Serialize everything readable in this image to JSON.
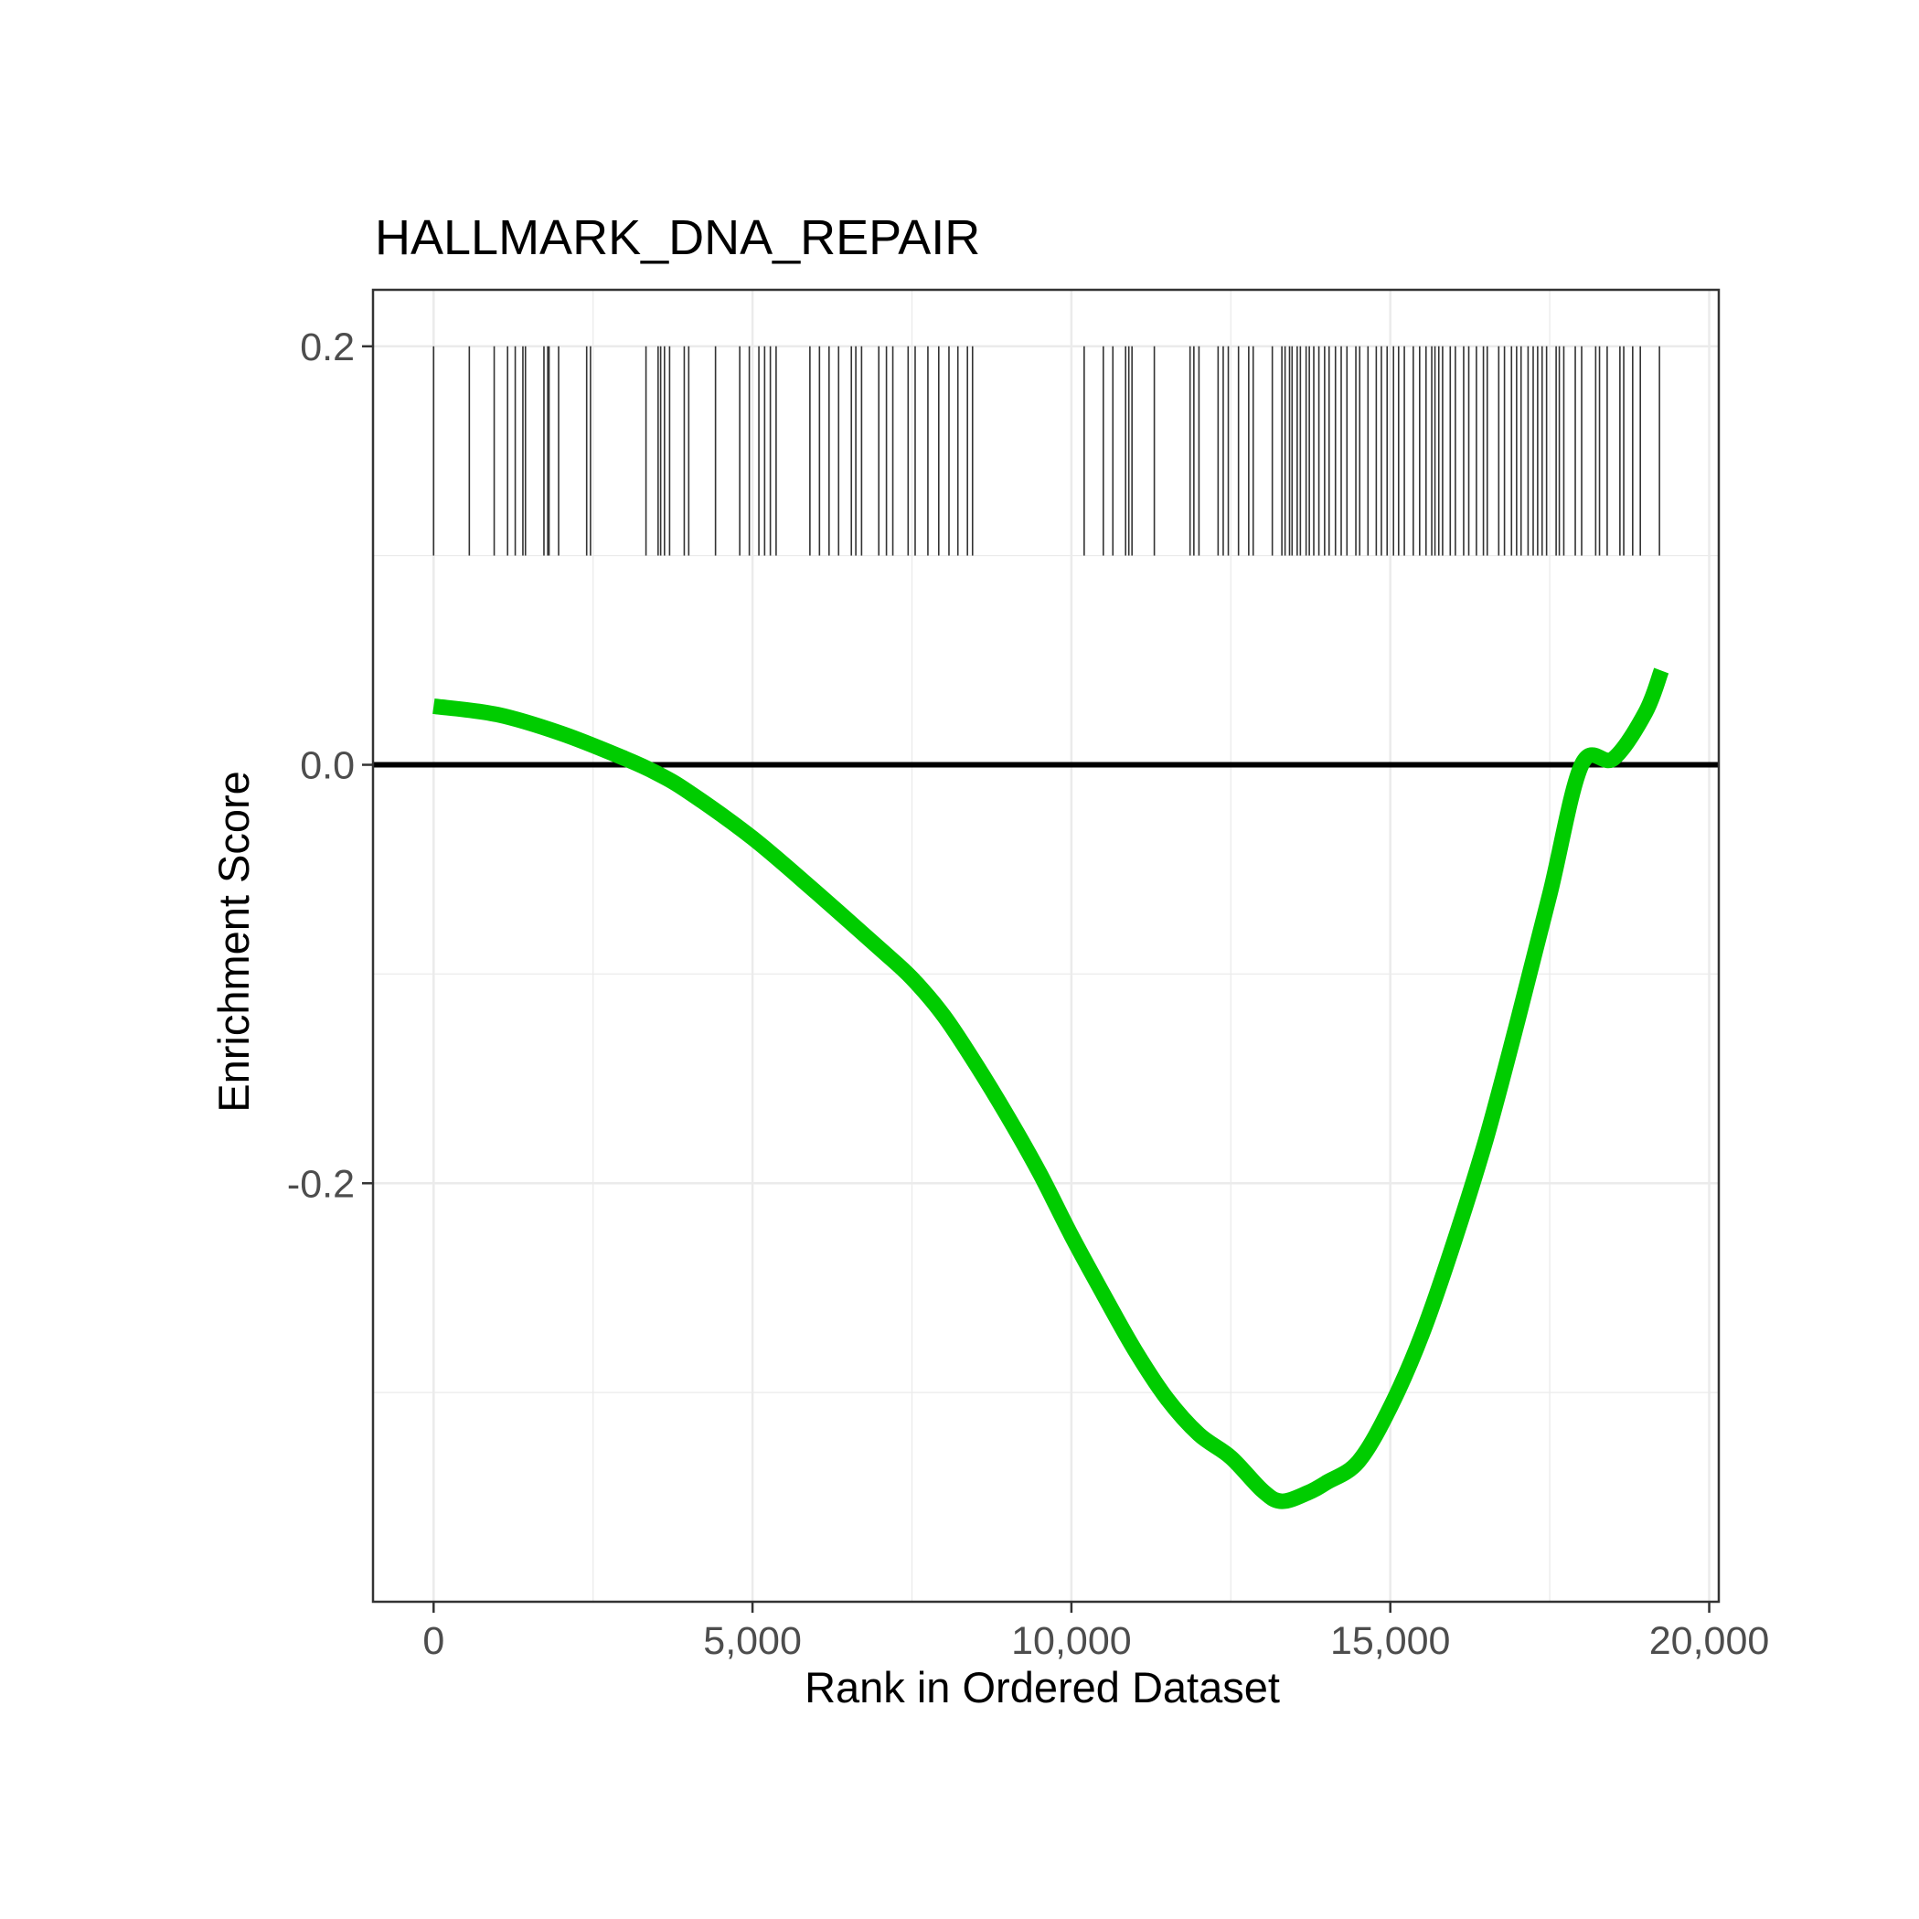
{
  "chart_data": {
    "type": "line",
    "title": "HALLMARK_DNA_REPAIR",
    "xlabel": "Rank in Ordered Dataset",
    "ylabel": "Enrichment Score",
    "xlim": [
      -950,
      20150
    ],
    "ylim": [
      -0.4,
      0.227
    ],
    "x_ticks": [
      0,
      5000,
      10000,
      15000,
      20000
    ],
    "x_tick_labels": [
      "0",
      "5,000",
      "10,000",
      "15,000",
      "20,000"
    ],
    "y_ticks": [
      0.2,
      0.0,
      -0.2
    ],
    "y_tick_labels": [
      "0.2",
      "0.0",
      "-0.2"
    ],
    "grid": true,
    "reference_line_y": 0.0,
    "colors": {
      "curve": "#00cc00",
      "hits": "#333333",
      "reference": "#000000",
      "grid": "#ebebeb",
      "panel_border": "#333333"
    },
    "series": [
      {
        "x": [
          0,
          1000,
          2000,
          3000,
          3500,
          4000,
          5000,
          6000,
          7000,
          7500,
          8000,
          8500,
          9000,
          9500,
          10000,
          10500,
          11000,
          11500,
          12000,
          12500,
          13000,
          13300,
          13700,
          14000,
          14500,
          15000,
          15500,
          16000,
          16500,
          17000,
          17500,
          18000,
          18500,
          19000,
          19250
        ],
        "y": [
          0.028,
          0.024,
          0.015,
          0.003,
          -0.004,
          -0.013,
          -0.035,
          -0.061,
          -0.088,
          -0.102,
          -0.12,
          -0.143,
          -0.168,
          -0.195,
          -0.225,
          -0.253,
          -0.28,
          -0.303,
          -0.32,
          -0.331,
          -0.347,
          -0.352,
          -0.348,
          -0.343,
          -0.333,
          -0.307,
          -0.272,
          -0.228,
          -0.179,
          -0.122,
          -0.062,
          0.0,
          0.003,
          0.025,
          0.045
        ]
      }
    ],
    "hit_band_y": [
      0.1,
      0.2
    ],
    "hits": [
      0,
      560,
      950,
      1160,
      1280,
      1400,
      1440,
      1730,
      1790,
      1810,
      1960,
      2400,
      2460,
      3330,
      3520,
      3560,
      3620,
      3700,
      3930,
      4000,
      4420,
      4800,
      4950,
      5100,
      5190,
      5280,
      5370,
      5900,
      6050,
      6200,
      6350,
      6550,
      6620,
      6710,
      6980,
      7100,
      7200,
      7440,
      7550,
      7750,
      7920,
      8080,
      8220,
      8370,
      8450,
      10200,
      10500,
      10650,
      10850,
      10900,
      10950,
      11300,
      11860,
      11920,
      12000,
      12300,
      12380,
      12460,
      12620,
      12780,
      12850,
      13150,
      13300,
      13350,
      13420,
      13460,
      13540,
      13590,
      13680,
      13730,
      13800,
      13880,
      13970,
      14040,
      14140,
      14230,
      14320,
      14460,
      14520,
      14650,
      14780,
      14860,
      14950,
      15050,
      15130,
      15220,
      15360,
      15460,
      15560,
      15650,
      15700,
      15760,
      15820,
      15940,
      16020,
      16150,
      16230,
      16350,
      16460,
      16520,
      16700,
      16790,
      16900,
      16980,
      17050,
      17160,
      17240,
      17310,
      17380,
      17450,
      17600,
      17650,
      17720,
      17900,
      18000,
      18220,
      18280,
      18400,
      18600,
      18660,
      18800,
      18920,
      19220
    ]
  }
}
